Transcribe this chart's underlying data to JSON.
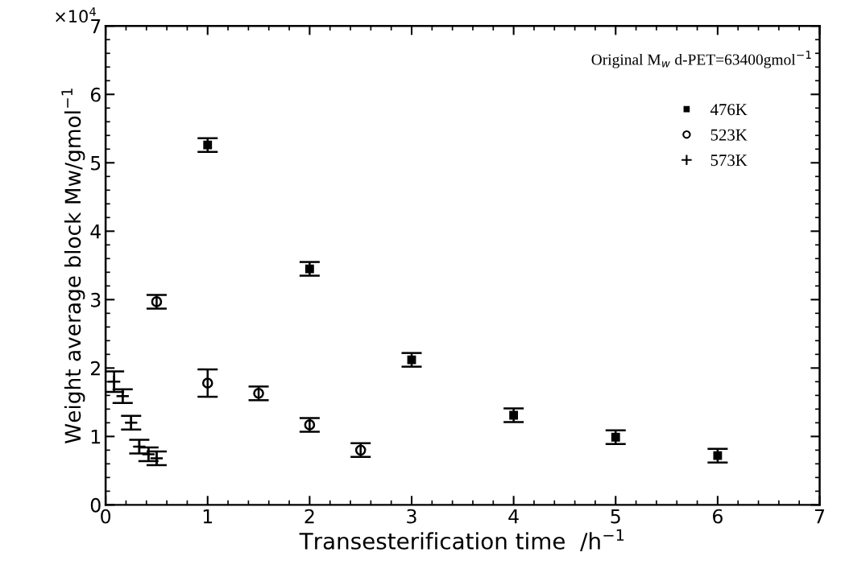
{
  "chart_data": {
    "type": "scatter",
    "xlabel": "Transesterification time  /h$^{−1}$",
    "ylabel": "Weight average block Mw/gmol$^{−1}$",
    "annotations": [
      "Original M$_{w}$ d-PET=63400gmol$^{−1}$",
      "×10$^{4}$"
    ],
    "xlim": [
      0,
      7
    ],
    "xticks": [
      0,
      1,
      2,
      3,
      4,
      5,
      6,
      7
    ],
    "ylim": [
      0,
      7
    ],
    "yticks": [
      0,
      1,
      2,
      3,
      4,
      5,
      6,
      7
    ],
    "legend": "top right",
    "grid": false,
    "series": [
      {
        "name": "476K",
        "color": "#000000",
        "marker": "square",
        "x": [
          1,
          2,
          3,
          4,
          5,
          6
        ],
        "values": [
          5.26,
          3.45,
          2.12,
          1.31,
          0.99,
          0.72
        ],
        "errors": [
          0.1,
          0.1,
          0.1,
          0.1,
          0.1,
          0.1
        ]
      },
      {
        "name": "523K",
        "color": "#000000",
        "marker": "circle",
        "x": [
          0.5,
          1,
          1.5,
          2,
          2.5
        ],
        "values": [
          2.97,
          1.78,
          1.63,
          1.17,
          0.8
        ],
        "errors": [
          0.1,
          0.2,
          0.1,
          0.1,
          0.1
        ]
      },
      {
        "name": "573K",
        "color": "#000000",
        "marker": "cross",
        "x": [
          0.083,
          0.167,
          0.25,
          0.33,
          0.42,
          0.5
        ],
        "values": [
          1.8,
          1.59,
          1.2,
          0.85,
          0.74,
          0.68
        ],
        "errors": [
          0.15,
          0.1,
          0.1,
          0.1,
          0.1,
          0.1
        ]
      }
    ]
  }
}
